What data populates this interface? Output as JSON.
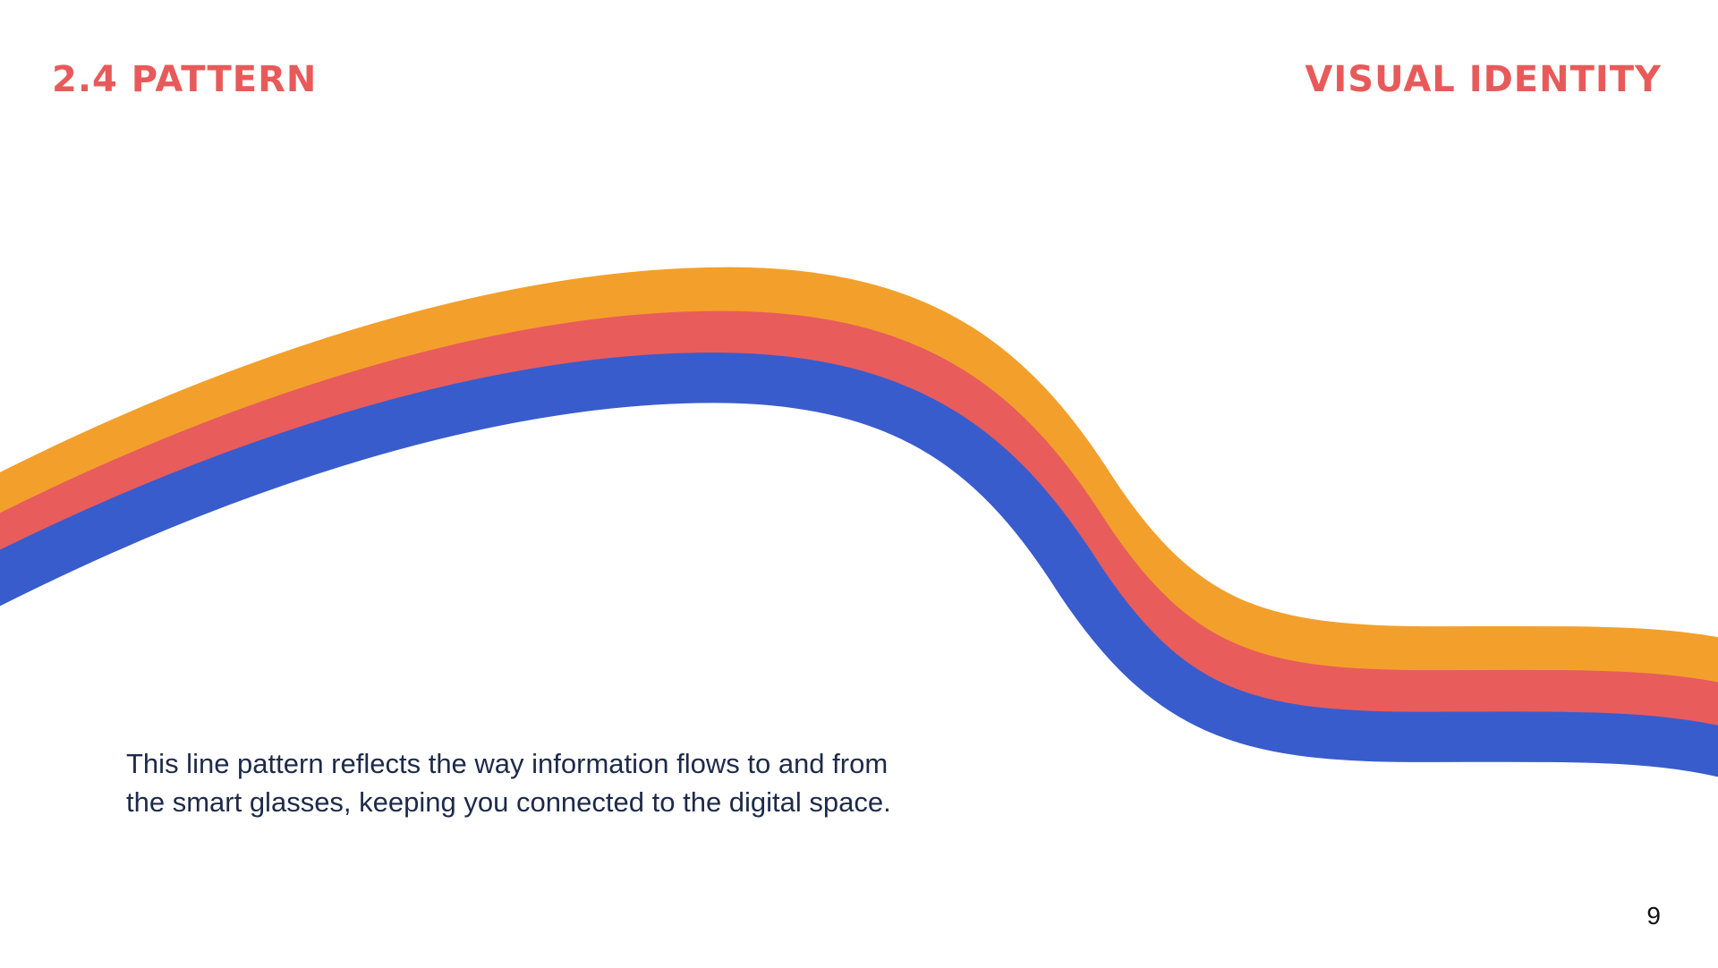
{
  "header": {
    "section": "2.4 Pattern",
    "title": "Visual Identity"
  },
  "body": {
    "lines": [
      "This line pattern reflects the way information flows to and from",
      "the smart glasses, keeping you connected to the digital space."
    ]
  },
  "footer": {
    "page_number": "9"
  }
}
